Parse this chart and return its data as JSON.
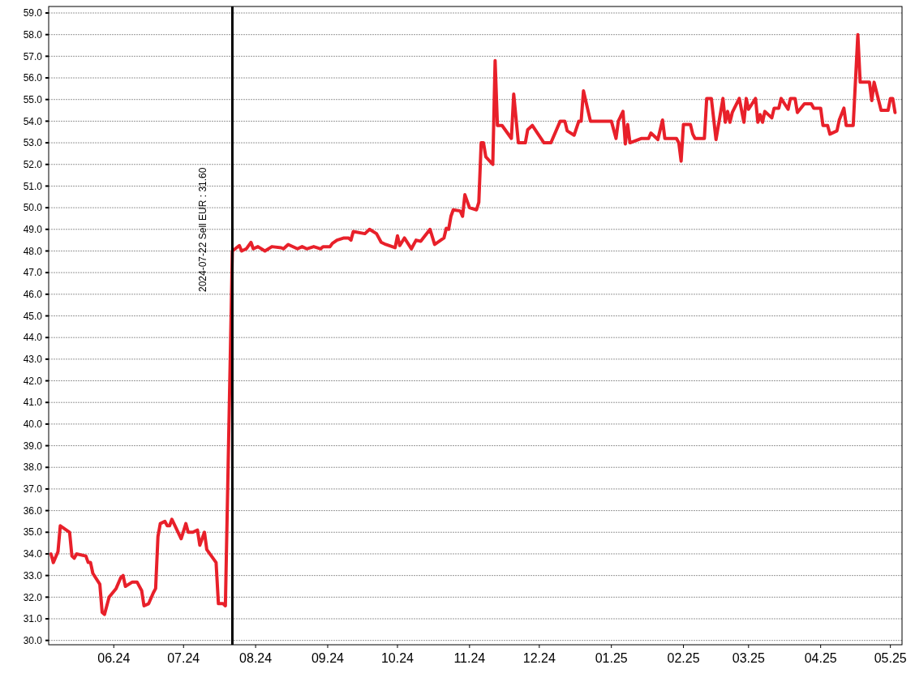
{
  "chart_data": {
    "type": "line",
    "x": [
      "2024-05-05",
      "2024-05-06",
      "2024-05-08",
      "2024-05-09",
      "2024-05-13",
      "2024-05-14",
      "2024-05-15",
      "2024-05-16",
      "2024-05-20",
      "2024-05-21",
      "2024-05-22",
      "2024-05-23",
      "2024-05-26",
      "2024-05-27",
      "2024-05-28",
      "2024-05-30",
      "2024-06-02",
      "2024-06-04",
      "2024-06-05",
      "2024-06-06",
      "2024-06-09",
      "2024-06-11",
      "2024-06-13",
      "2024-06-14",
      "2024-06-16",
      "2024-06-18",
      "2024-06-19",
      "2024-06-20",
      "2024-06-21",
      "2024-06-23",
      "2024-06-24",
      "2024-06-25",
      "2024-06-26",
      "2024-06-30",
      "2024-07-02",
      "2024-07-03",
      "2024-07-05",
      "2024-07-07",
      "2024-07-08",
      "2024-07-10",
      "2024-07-11",
      "2024-07-15",
      "2024-07-16",
      "2024-07-18",
      "2024-07-19",
      "2024-07-22",
      "2024-07-25",
      "2024-07-26",
      "2024-07-28",
      "2024-07-30",
      "2024-07-31",
      "2024-08-02",
      "2024-08-05",
      "2024-08-08",
      "2024-08-12",
      "2024-08-13",
      "2024-08-15",
      "2024-08-19",
      "2024-08-21",
      "2024-08-23",
      "2024-08-26",
      "2024-08-29",
      "2024-08-30",
      "2024-09-02",
      "2024-09-03",
      "2024-09-05",
      "2024-09-08",
      "2024-09-10",
      "2024-09-11",
      "2024-09-12",
      "2024-09-17",
      "2024-09-19",
      "2024-09-22",
      "2024-09-24",
      "2024-09-26",
      "2024-09-30",
      "2024-10-01",
      "2024-10-02",
      "2024-10-04",
      "2024-10-07",
      "2024-10-09",
      "2024-10-11",
      "2024-10-15",
      "2024-10-17",
      "2024-10-21",
      "2024-10-22",
      "2024-10-23",
      "2024-10-24",
      "2024-10-25",
      "2024-10-28",
      "2024-10-29",
      "2024-10-30",
      "2024-11-01",
      "2024-11-04",
      "2024-11-05",
      "2024-11-06",
      "2024-11-07",
      "2024-11-08",
      "2024-11-11",
      "2024-11-12",
      "2024-11-13",
      "2024-11-15",
      "2024-11-19",
      "2024-11-20",
      "2024-11-22",
      "2024-11-25",
      "2024-11-26",
      "2024-11-28",
      "2024-12-03",
      "2024-12-06",
      "2024-12-10",
      "2024-12-12",
      "2024-12-13",
      "2024-12-16",
      "2024-12-18",
      "2024-12-19",
      "2024-12-20",
      "2024-12-23",
      "2025-01-01",
      "2025-01-03",
      "2025-01-04",
      "2025-01-06",
      "2025-01-07",
      "2025-01-08",
      "2025-01-09",
      "2025-01-14",
      "2025-01-17",
      "2025-01-18",
      "2025-01-21",
      "2025-01-23",
      "2025-01-24",
      "2025-01-29",
      "2025-01-30",
      "2025-01-31",
      "2025-02-01",
      "2025-02-04",
      "2025-02-05",
      "2025-02-06",
      "2025-02-10",
      "2025-02-11",
      "2025-02-13",
      "2025-02-15",
      "2025-02-18",
      "2025-02-19",
      "2025-02-20",
      "2025-02-21",
      "2025-02-22",
      "2025-02-25",
      "2025-02-27",
      "2025-02-28",
      "2025-03-01",
      "2025-03-04",
      "2025-03-05",
      "2025-03-06",
      "2025-03-07",
      "2025-03-08",
      "2025-03-11",
      "2025-03-12",
      "2025-03-14",
      "2025-03-15",
      "2025-03-18",
      "2025-03-19",
      "2025-03-21",
      "2025-03-22",
      "2025-03-25",
      "2025-03-28",
      "2025-03-29",
      "2025-04-01",
      "2025-04-02",
      "2025-04-04",
      "2025-04-05",
      "2025-04-08",
      "2025-04-09",
      "2025-04-11",
      "2025-04-12",
      "2025-04-15",
      "2025-04-17",
      "2025-04-18",
      "2025-04-22",
      "2025-04-23",
      "2025-04-24",
      "2025-04-27",
      "2025-04-30",
      "2025-05-01",
      "2025-05-02",
      "2025-05-03"
    ],
    "series": [
      {
        "color": "#e8202a",
        "values": [
          34.0,
          33.6,
          34.1,
          35.3,
          35.0,
          33.9,
          33.8,
          34.0,
          33.9,
          33.6,
          33.6,
          33.1,
          32.6,
          31.3,
          31.2,
          32.0,
          32.4,
          32.9,
          33.0,
          32.5,
          32.7,
          32.7,
          32.3,
          31.6,
          31.7,
          32.2,
          32.4,
          34.8,
          35.4,
          35.5,
          35.3,
          35.3,
          35.6,
          34.7,
          35.4,
          35.0,
          35.0,
          35.1,
          34.4,
          35.0,
          34.2,
          33.6,
          31.7,
          31.7,
          31.6,
          48.0,
          48.25,
          48.0,
          48.1,
          48.4,
          48.1,
          48.2,
          48.0,
          48.2,
          48.15,
          48.1,
          48.3,
          48.1,
          48.2,
          48.1,
          48.2,
          48.1,
          48.2,
          48.2,
          48.35,
          48.5,
          48.6,
          48.6,
          48.5,
          48.9,
          48.8,
          49.0,
          48.8,
          48.4,
          48.3,
          48.15,
          48.7,
          48.25,
          48.6,
          48.1,
          48.5,
          48.45,
          49.0,
          48.3,
          48.6,
          49.05,
          49.0,
          49.6,
          49.9,
          49.85,
          49.6,
          50.6,
          50.0,
          49.9,
          50.25,
          53.0,
          53.0,
          52.35,
          52.0,
          56.8,
          53.8,
          53.8,
          53.2,
          55.25,
          53.0,
          53.0,
          53.6,
          53.8,
          53.0,
          53.0,
          54.0,
          54.0,
          53.55,
          53.35,
          54.0,
          54.0,
          55.4,
          54.0,
          54.0,
          53.2,
          54.0,
          54.45,
          52.95,
          53.85,
          53.0,
          53.2,
          53.2,
          53.45,
          53.15,
          54.05,
          53.2,
          53.2,
          53.0,
          52.15,
          53.85,
          53.85,
          53.4,
          53.2,
          53.2,
          55.05,
          55.05,
          53.15,
          55.05,
          53.95,
          54.45,
          53.95,
          54.4,
          55.05,
          53.95,
          55.05,
          54.55,
          55.05,
          53.95,
          54.3,
          53.95,
          54.45,
          54.15,
          54.6,
          54.6,
          55.05,
          54.55,
          55.05,
          55.05,
          54.4,
          54.8,
          54.8,
          54.6,
          54.6,
          53.8,
          53.8,
          53.4,
          53.55,
          54.05,
          54.6,
          53.8,
          53.8,
          58.0,
          55.8,
          55.8,
          54.95,
          55.8,
          54.5,
          54.5,
          55.05,
          55.05,
          54.4
        ]
      }
    ],
    "xlim": [
      "2024-05-04",
      "2025-05-06"
    ],
    "xticks": [
      {
        "value": "2024-06-01",
        "label": "06.24"
      },
      {
        "value": "2024-07-01",
        "label": "07.24"
      },
      {
        "value": "2024-08-01",
        "label": "08.24"
      },
      {
        "value": "2024-09-01",
        "label": "09.24"
      },
      {
        "value": "2024-10-01",
        "label": "10.24"
      },
      {
        "value": "2024-11-01",
        "label": "11.24"
      },
      {
        "value": "2024-12-01",
        "label": "12.24"
      },
      {
        "value": "2025-01-01",
        "label": "01.25"
      },
      {
        "value": "2025-02-01",
        "label": "02.25"
      },
      {
        "value": "2025-03-01",
        "label": "03.25"
      },
      {
        "value": "2025-04-01",
        "label": "04.25"
      },
      {
        "value": "2025-05-01",
        "label": "05.25"
      }
    ],
    "ylim": [
      29.8,
      59.3
    ],
    "yticks": [
      {
        "value": 30,
        "label": "30.0"
      },
      {
        "value": 31,
        "label": "31.0"
      },
      {
        "value": 32,
        "label": "32.0"
      },
      {
        "value": 33,
        "label": "33.0"
      },
      {
        "value": 34,
        "label": "34.0"
      },
      {
        "value": 35,
        "label": "35.0"
      },
      {
        "value": 36,
        "label": "36.0"
      },
      {
        "value": 37,
        "label": "37.0"
      },
      {
        "value": 38,
        "label": "38.0"
      },
      {
        "value": 39,
        "label": "39.0"
      },
      {
        "value": 40,
        "label": "40.0"
      },
      {
        "value": 41,
        "label": "41.0"
      },
      {
        "value": 42,
        "label": "42.0"
      },
      {
        "value": 43,
        "label": "43.0"
      },
      {
        "value": 44,
        "label": "44.0"
      },
      {
        "value": 45,
        "label": "45.0"
      },
      {
        "value": 46,
        "label": "46.0"
      },
      {
        "value": 47,
        "label": "47.0"
      },
      {
        "value": 48,
        "label": "48.0"
      },
      {
        "value": 49,
        "label": "49.0"
      },
      {
        "value": 50,
        "label": "50.0"
      },
      {
        "value": 51,
        "label": "51.0"
      },
      {
        "value": 52,
        "label": "52.0"
      },
      {
        "value": 53,
        "label": "53.0"
      },
      {
        "value": 54,
        "label": "54.0"
      },
      {
        "value": 55,
        "label": "55.0"
      },
      {
        "value": 56,
        "label": "56.0"
      },
      {
        "value": 57,
        "label": "57.0"
      },
      {
        "value": 58,
        "label": "58.0"
      },
      {
        "value": 59,
        "label": "59.0"
      }
    ],
    "grid": "y",
    "marker": "none",
    "line_style": "solid",
    "ref_lines": [
      {
        "axis": "x",
        "value": "2024-07-22",
        "label": "2024-07-22 Sell EUR : 31.60",
        "color": "#000000"
      }
    ]
  }
}
